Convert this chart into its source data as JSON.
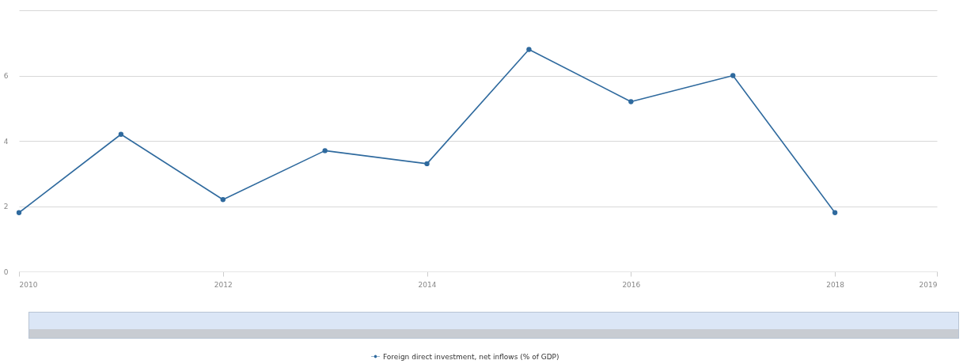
{
  "chart_data": {
    "type": "line",
    "x": [
      2010,
      2011,
      2012,
      2013,
      2014,
      2015,
      2016,
      2017,
      2018
    ],
    "series": [
      {
        "name": "Foreign direct investment, net inflows (% of GDP)",
        "color": "#2f6a9e",
        "values": [
          1.8,
          4.2,
          2.2,
          3.7,
          3.3,
          6.8,
          5.2,
          6.0,
          1.8
        ]
      }
    ],
    "xlim": [
      2010,
      2019
    ],
    "xticks": [
      2010,
      2012,
      2014,
      2016,
      2018,
      2019
    ],
    "ylim": [
      0,
      8
    ],
    "yticks": [
      0,
      2,
      4,
      6,
      {
        "value": 8,
        "label": null
      }
    ],
    "grid": "y",
    "legend": "bottom",
    "marker": "circle",
    "line_style": "solid"
  }
}
